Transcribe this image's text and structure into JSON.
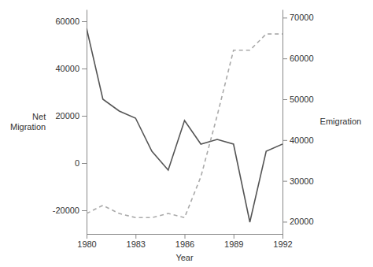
{
  "chart_data": {
    "type": "line",
    "xlabel": "Year",
    "ylabel": "Net\nMigration",
    "y2label": "Emigration",
    "x": [
      1980,
      1981,
      1982,
      1983,
      1984,
      1985,
      1986,
      1987,
      1988,
      1989,
      1990,
      1991,
      1992
    ],
    "series": [
      {
        "color": "#555555",
        "line_style": "solid",
        "values": [
          57000,
          27000,
          22000,
          19000,
          5000,
          -3000,
          18000,
          8000,
          10000,
          8000,
          -25000,
          5000,
          8000
        ]
      },
      {
        "color": "#aaaaaa",
        "line_style": "dashed",
        "axis": "y2",
        "values": [
          22000,
          24000,
          22000,
          21000,
          21000,
          22000,
          21000,
          31000,
          46000,
          62000,
          62000,
          66000,
          66000
        ]
      }
    ],
    "xlim": [
      1980,
      1992
    ],
    "xticks": [
      1980,
      1983,
      1986,
      1989,
      1992
    ],
    "ylim": [
      -30000,
      65000
    ],
    "yticks": [
      -20000,
      0,
      20000,
      40000,
      60000
    ],
    "y2lim": [
      17000,
      72000
    ],
    "y2ticks": [
      20000,
      30000,
      40000,
      50000,
      60000,
      70000
    ]
  }
}
